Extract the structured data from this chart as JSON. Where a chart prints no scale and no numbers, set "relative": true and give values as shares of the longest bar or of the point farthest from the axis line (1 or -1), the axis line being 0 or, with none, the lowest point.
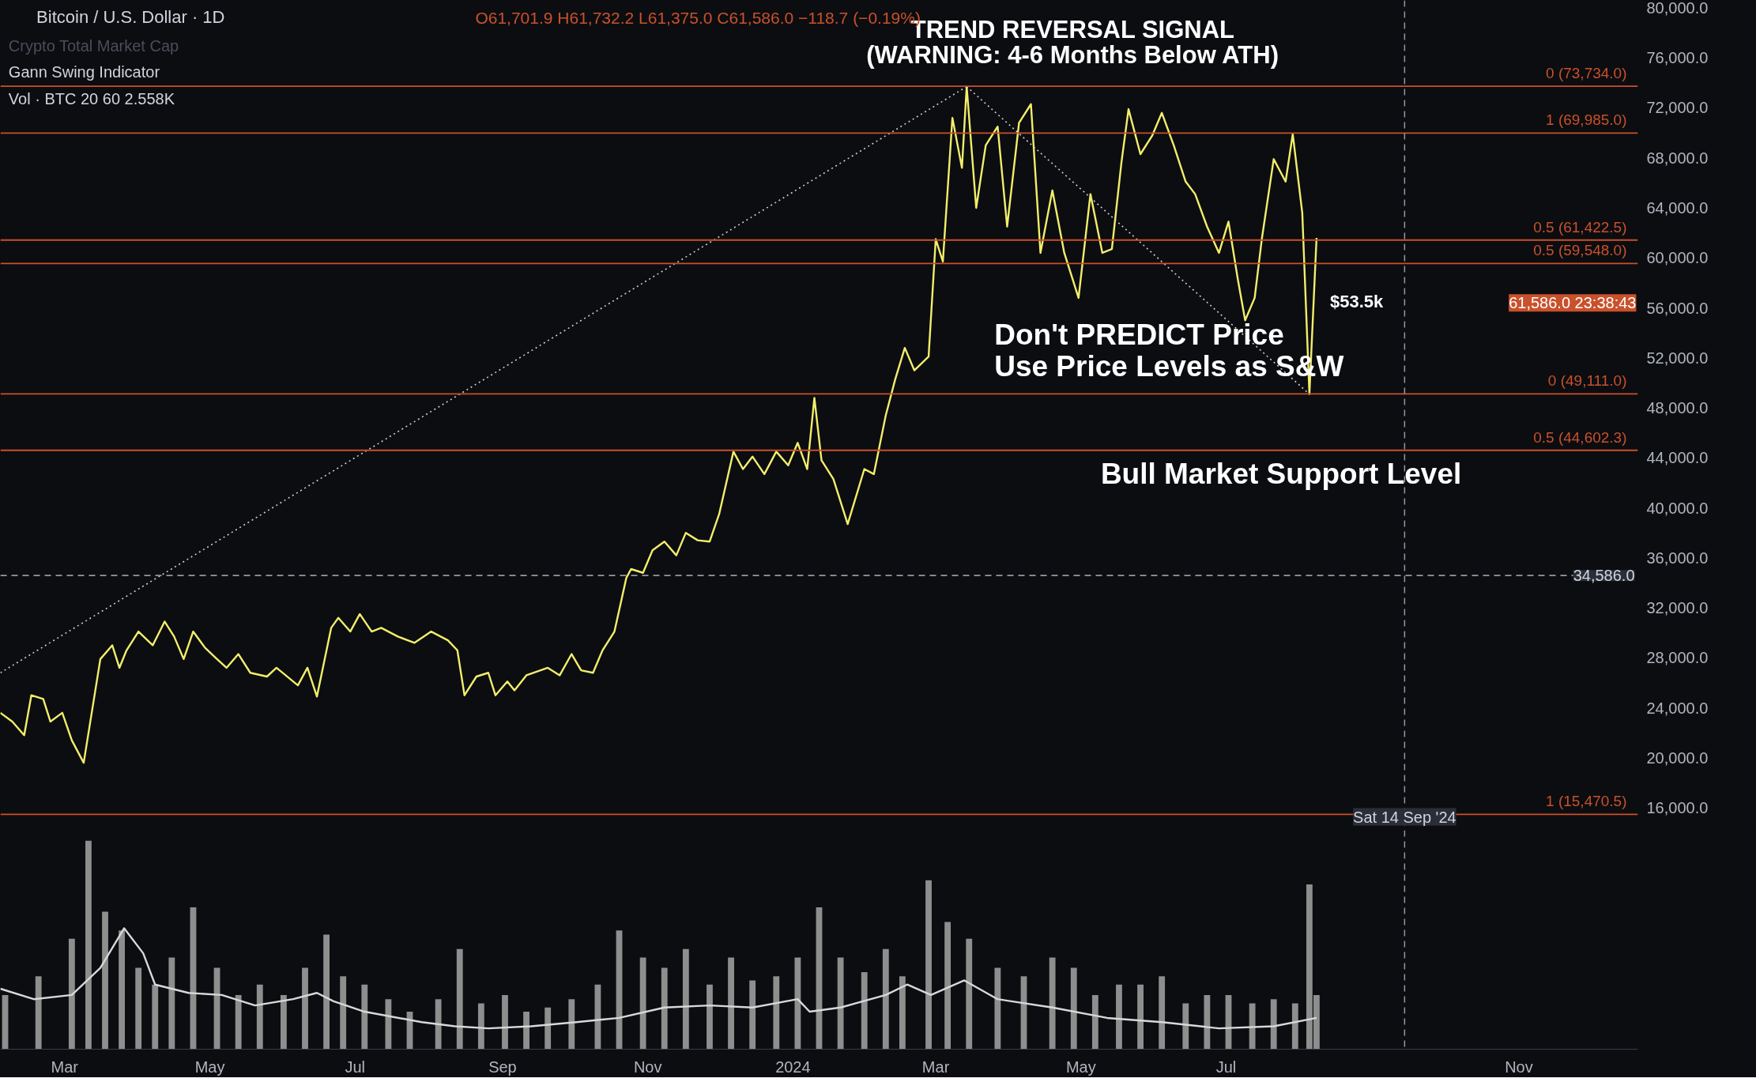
{
  "chart_data": [
    {
      "type": "line",
      "title": "TREND REVERSAL SIGNAL",
      "subtitle": "(WARNING: 4-6 Months Below ATH)",
      "xlim": [
        "2023-02-02",
        "2024-12-21"
      ],
      "ylim": [
        14200,
        80600
      ],
      "yticks": [
        {
          "value": 16000,
          "label": "16,000.0"
        },
        {
          "value": 20000,
          "label": "20,000.0"
        },
        {
          "value": 24000,
          "label": "24,000.0"
        },
        {
          "value": 28000,
          "label": "28,000.0"
        },
        {
          "value": 32000,
          "label": "32,000.0"
        },
        {
          "value": 36000,
          "label": "36,000.0"
        },
        {
          "value": 40000,
          "label": "40,000.0"
        },
        {
          "value": 44000,
          "label": "44,000.0"
        },
        {
          "value": 48000,
          "label": "48,000.0"
        },
        {
          "value": 52000,
          "label": "52,000.0"
        },
        {
          "value": 56000,
          "label": "56,000.0"
        },
        {
          "value": 60000,
          "label": "60,000.0"
        },
        {
          "value": 64000,
          "label": "64,000.0"
        },
        {
          "value": 68000,
          "label": "68,000.0"
        },
        {
          "value": 72000,
          "label": "72,000.0"
        },
        {
          "value": 76000,
          "label": "76,000.0"
        },
        {
          "value": 80000,
          "label": "80,000.0"
        }
      ],
      "grid": false,
      "marker": "none",
      "tick_labels": "y",
      "series": [
        {
          "color": "#f2ee6a",
          "line_style": "solid",
          "x": [
            "2023-02-02",
            "2023-02-07",
            "2023-02-12",
            "2023-02-15",
            "2023-02-20",
            "2023-02-23",
            "2023-02-28",
            "2023-03-04",
            "2023-03-09",
            "2023-03-16",
            "2023-03-21",
            "2023-03-24",
            "2023-03-27",
            "2023-04-01",
            "2023-04-07",
            "2023-04-12",
            "2023-04-16",
            "2023-04-20",
            "2023-04-24",
            "2023-04-29",
            "2023-05-04",
            "2023-05-08",
            "2023-05-13",
            "2023-05-18",
            "2023-05-25",
            "2023-05-29",
            "2023-06-07",
            "2023-06-11",
            "2023-06-15",
            "2023-06-21",
            "2023-06-24",
            "2023-06-29",
            "2023-07-03",
            "2023-07-08",
            "2023-07-12",
            "2023-07-19",
            "2023-07-26",
            "2023-08-02",
            "2023-08-09",
            "2023-08-13",
            "2023-08-16",
            "2023-08-21",
            "2023-08-26",
            "2023-08-29",
            "2023-09-03",
            "2023-09-06",
            "2023-09-11",
            "2023-09-20",
            "2023-09-25",
            "2023-09-30",
            "2023-10-04",
            "2023-10-09",
            "2023-10-13",
            "2023-10-18",
            "2023-10-23",
            "2023-10-25",
            "2023-10-30",
            "2023-11-03",
            "2023-11-08",
            "2023-11-13",
            "2023-11-17",
            "2023-11-22",
            "2023-11-27",
            "2023-12-01",
            "2023-12-07",
            "2023-12-11",
            "2023-12-15",
            "2023-12-20",
            "2023-12-25",
            "2023-12-30",
            "2024-01-03",
            "2024-01-07",
            "2024-01-10",
            "2024-01-13",
            "2024-01-18",
            "2024-01-24",
            "2024-01-31",
            "2024-02-04",
            "2024-02-09",
            "2024-02-13",
            "2024-02-17",
            "2024-02-21",
            "2024-02-27",
            "2024-03-01",
            "2024-03-04",
            "2024-03-08",
            "2024-03-12",
            "2024-03-14",
            "2024-03-18",
            "2024-03-22",
            "2024-03-27",
            "2024-03-31",
            "2024-04-05",
            "2024-04-10",
            "2024-04-14",
            "2024-04-19",
            "2024-04-24",
            "2024-04-30",
            "2024-05-05",
            "2024-05-10",
            "2024-05-14",
            "2024-05-18",
            "2024-05-21",
            "2024-05-26",
            "2024-05-31",
            "2024-06-04",
            "2024-06-09",
            "2024-06-14",
            "2024-06-18",
            "2024-06-23",
            "2024-06-28",
            "2024-07-02",
            "2024-07-06",
            "2024-07-09",
            "2024-07-13",
            "2024-07-16",
            "2024-07-21",
            "2024-07-26",
            "2024-07-29",
            "2024-08-02",
            "2024-08-05",
            "2024-08-08"
          ],
          "values": [
            23600,
            22900,
            21800,
            25000,
            24700,
            22900,
            23600,
            21400,
            19600,
            27900,
            29000,
            27200,
            28600,
            30100,
            29000,
            30900,
            29700,
            27900,
            30100,
            28800,
            27900,
            27200,
            28300,
            26800,
            26500,
            27200,
            25800,
            27200,
            24900,
            30400,
            31200,
            30100,
            31500,
            30100,
            30400,
            29700,
            29200,
            30100,
            29400,
            28600,
            25000,
            26500,
            26800,
            25000,
            26100,
            25400,
            26600,
            27200,
            26600,
            28300,
            27000,
            26800,
            28600,
            30100,
            34400,
            35100,
            34800,
            36600,
            37300,
            36200,
            38000,
            37400,
            37300,
            39500,
            44500,
            43100,
            44100,
            42700,
            44500,
            43400,
            45200,
            43100,
            48800,
            43800,
            42300,
            38700,
            43100,
            42700,
            47400,
            50300,
            52800,
            51000,
            52100,
            61500,
            59700,
            71200,
            67200,
            73700,
            64000,
            69000,
            70500,
            62500,
            70800,
            72300,
            60400,
            65400,
            60400,
            56800,
            65100,
            60400,
            60700,
            67600,
            71900,
            68300,
            69800,
            71600,
            69000,
            66100,
            65100,
            62500,
            60400,
            62900,
            58200,
            55000,
            56800,
            61500,
            67900,
            66100,
            69900,
            63600,
            49100,
            61600
          ]
        },
        {
          "color": "#d0d0d0",
          "line_style": "dotted",
          "x": [
            "2023-02-02",
            "2024-03-14"
          ],
          "values": [
            26800,
            73700
          ]
        },
        {
          "color": "#d0d0d0",
          "line_style": "dotted",
          "x": [
            "2024-03-14",
            "2024-08-05"
          ],
          "values": [
            73700,
            49100
          ]
        }
      ],
      "ref_lines": [
        {
          "axis": "y",
          "value": 73734,
          "label": "0 (73,734.0)",
          "color": "#c9512b",
          "line_style": "solid"
        },
        {
          "axis": "y",
          "value": 69985,
          "label": "1 (69,985.0)",
          "color": "#c9512b",
          "line_style": "solid"
        },
        {
          "axis": "y",
          "value": 61422.5,
          "label": "0.5 (61,422.5)",
          "color": "#c9512b",
          "line_style": "solid"
        },
        {
          "axis": "y",
          "value": 59548,
          "label": "0.5 (59,548.0)",
          "color": "#c9512b",
          "line_style": "solid"
        },
        {
          "axis": "y",
          "value": 49111,
          "label": "0 (49,111.0)",
          "color": "#c9512b",
          "line_style": "solid"
        },
        {
          "axis": "y",
          "value": 44602.3,
          "label": "0.5 (44,602.3)",
          "color": "#c9512b",
          "line_style": "solid"
        },
        {
          "axis": "y",
          "value": 15470.5,
          "label": "1 (15,470.5)",
          "color": "#c9512b",
          "line_style": "solid"
        },
        {
          "axis": "y",
          "value": 34586,
          "label": "34,586.0",
          "color": "#9598a1",
          "line_style": "dashed"
        },
        {
          "axis": "x",
          "value": "2024-09-14",
          "label": "Sat 14 Sep '24",
          "color": "#9598a1",
          "line_style": "dashed"
        }
      ],
      "annotations": [
        "Bitcoin / U.S. Dollar · 1D",
        "O61,701.9 H61,732.2 L61,375.0 C61,586.0 −118.7 (−0.19%)",
        "Crypto Total Market Cap",
        "Gann Swing Indicator",
        "Vol · BTC 20 60 2.558K",
        "Don't PREDICT Price",
        "Use Price Levels as S&W",
        "Bull Market Support Level",
        "$53.5k",
        "61,586.0 23:38:43"
      ]
    },
    {
      "type": "bar",
      "relative": true,
      "ref_lines": [
        {
          "axis": "x",
          "value": "2024-09-14",
          "color": "#9598a1",
          "line_style": "dashed"
        }
      ],
      "xlim": [
        "2023-02-02",
        "2024-12-21"
      ],
      "xticks": [
        {
          "value": "2023-03-01",
          "label": "Mar"
        },
        {
          "value": "2023-05-01",
          "label": "May"
        },
        {
          "value": "2023-07-01",
          "label": "Jul"
        },
        {
          "value": "2023-09-01",
          "label": "Sep"
        },
        {
          "value": "2023-11-01",
          "label": "Nov"
        },
        {
          "value": "2024-01-01",
          "label": "2024"
        },
        {
          "value": "2024-03-01",
          "label": "Mar"
        },
        {
          "value": "2024-05-01",
          "label": "May"
        },
        {
          "value": "2024-07-01",
          "label": "Jul"
        },
        {
          "value": "2024-11-01",
          "label": "Nov"
        }
      ],
      "series": [
        {
          "type": "bar",
          "color": "#8e8e8e",
          "x": [
            "2023-02-04",
            "2023-02-18",
            "2023-03-04",
            "2023-03-11",
            "2023-03-18",
            "2023-03-25",
            "2023-04-01",
            "2023-04-08",
            "2023-04-15",
            "2023-04-24",
            "2023-05-04",
            "2023-05-13",
            "2023-05-22",
            "2023-06-01",
            "2023-06-10",
            "2023-06-19",
            "2023-06-26",
            "2023-07-05",
            "2023-07-15",
            "2023-07-24",
            "2023-08-05",
            "2023-08-14",
            "2023-08-23",
            "2023-09-02",
            "2023-09-11",
            "2023-09-20",
            "2023-09-30",
            "2023-10-11",
            "2023-10-20",
            "2023-10-30",
            "2023-11-08",
            "2023-11-17",
            "2023-11-27",
            "2023-12-06",
            "2023-12-15",
            "2023-12-25",
            "2024-01-03",
            "2024-01-12",
            "2024-01-21",
            "2024-01-31",
            "2024-02-09",
            "2024-02-16",
            "2024-02-27",
            "2024-03-06",
            "2024-03-15",
            "2024-03-27",
            "2024-04-07",
            "2024-04-19",
            "2024-04-28",
            "2024-05-07",
            "2024-05-17",
            "2024-05-26",
            "2024-06-04",
            "2024-06-14",
            "2024-06-23",
            "2024-07-02",
            "2024-07-12",
            "2024-07-21",
            "2024-07-30",
            "2024-08-05",
            "2024-08-08"
          ],
          "values": [
            0.26,
            0.35,
            0.53,
            1,
            0.66,
            0.57,
            0.39,
            0.31,
            0.44,
            0.68,
            0.39,
            0.26,
            0.31,
            0.26,
            0.39,
            0.55,
            0.35,
            0.31,
            0.24,
            0.18,
            0.24,
            0.48,
            0.22,
            0.26,
            0.18,
            0.2,
            0.24,
            0.31,
            0.57,
            0.44,
            0.39,
            0.48,
            0.31,
            0.44,
            0.33,
            0.35,
            0.44,
            0.68,
            0.44,
            0.37,
            0.48,
            0.35,
            0.81,
            0.61,
            0.53,
            0.39,
            0.35,
            0.44,
            0.39,
            0.26,
            0.31,
            0.31,
            0.35,
            0.22,
            0.26,
            0.26,
            0.22,
            0.24,
            0.22,
            0.79,
            0.26
          ]
        },
        {
          "type": "line",
          "color": "#d8d8d8",
          "x": [
            "2023-02-02",
            "2023-02-16",
            "2023-03-04",
            "2023-03-16",
            "2023-03-26",
            "2023-04-03",
            "2023-04-08",
            "2023-04-22",
            "2023-05-06",
            "2023-05-20",
            "2023-06-05",
            "2023-06-15",
            "2023-06-22",
            "2023-07-05",
            "2023-07-29",
            "2023-08-12",
            "2023-08-26",
            "2023-09-13",
            "2023-10-02",
            "2023-10-20",
            "2023-11-08",
            "2023-11-27",
            "2023-12-15",
            "2024-01-03",
            "2024-01-08",
            "2024-01-21",
            "2024-02-09",
            "2024-02-18",
            "2024-02-28",
            "2024-03-13",
            "2024-03-27",
            "2024-04-19",
            "2024-05-12",
            "2024-06-04",
            "2024-06-28",
            "2024-07-21",
            "2024-08-08"
          ],
          "values": [
            0.29,
            0.24,
            0.26,
            0.39,
            0.58,
            0.46,
            0.31,
            0.27,
            0.26,
            0.21,
            0.24,
            0.27,
            0.23,
            0.18,
            0.13,
            0.11,
            0.1,
            0.11,
            0.13,
            0.15,
            0.2,
            0.21,
            0.2,
            0.24,
            0.18,
            0.2,
            0.26,
            0.31,
            0.26,
            0.33,
            0.24,
            0.2,
            0.15,
            0.13,
            0.1,
            0.11,
            0.15
          ]
        }
      ]
    }
  ]
}
